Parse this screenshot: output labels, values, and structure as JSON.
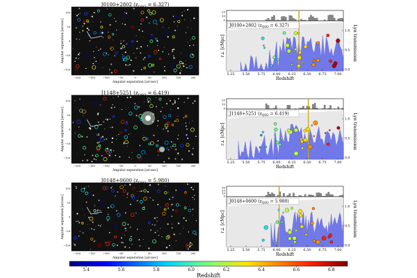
{
  "panels": [
    {
      "field": "J0100+2802",
      "z_qso": "6.327",
      "title_left": "J0100+2802 (z",
      "title_box": "J0100+2802 (z",
      "hist_ticks": [
        "20",
        "10",
        "0"
      ]
    },
    {
      "field": "J1148+5251",
      "z_qso": "6.419",
      "title_left": "J1148+5251 (z",
      "title_box": "J1148+5251 (z",
      "hist_ticks": [
        "20",
        "10",
        "0"
      ]
    },
    {
      "field": "J0148+0600",
      "z_qso": "5.980",
      "title_left": "J0148+0600 (z",
      "title_box": "J0148+0600 (z",
      "hist_ticks": [
        "30",
        "20",
        "10",
        "0"
      ]
    }
  ],
  "image_axes": {
    "xlabel": "Angular separation [arcsec]",
    "ylabel": "Angular separation [arcsec]",
    "xticks": [
      "−200",
      "−150",
      "−100",
      "−50",
      "0",
      "50",
      "100",
      "150",
      "200"
    ],
    "yticks": [
      "100",
      "50",
      "0",
      "−50",
      "−100"
    ]
  },
  "spec_axes": {
    "xlabel": "Redshift",
    "ylabel": "r⊥ [cMpc]",
    "right_label": "Lyα transmission",
    "xticks": [
      "5.25",
      "5.50",
      "5.75",
      "6.00",
      "6.25",
      "6.50",
      "6.75",
      "7.00"
    ],
    "right_ticks": [
      "1.0",
      "0.5",
      "0.0"
    ]
  },
  "colorbar": {
    "label": "Redshift",
    "ticks": [
      "5.4",
      "5.6",
      "5.8",
      "6.0",
      "6.2",
      "6.4",
      "6.6",
      "6.8"
    ]
  }
}
